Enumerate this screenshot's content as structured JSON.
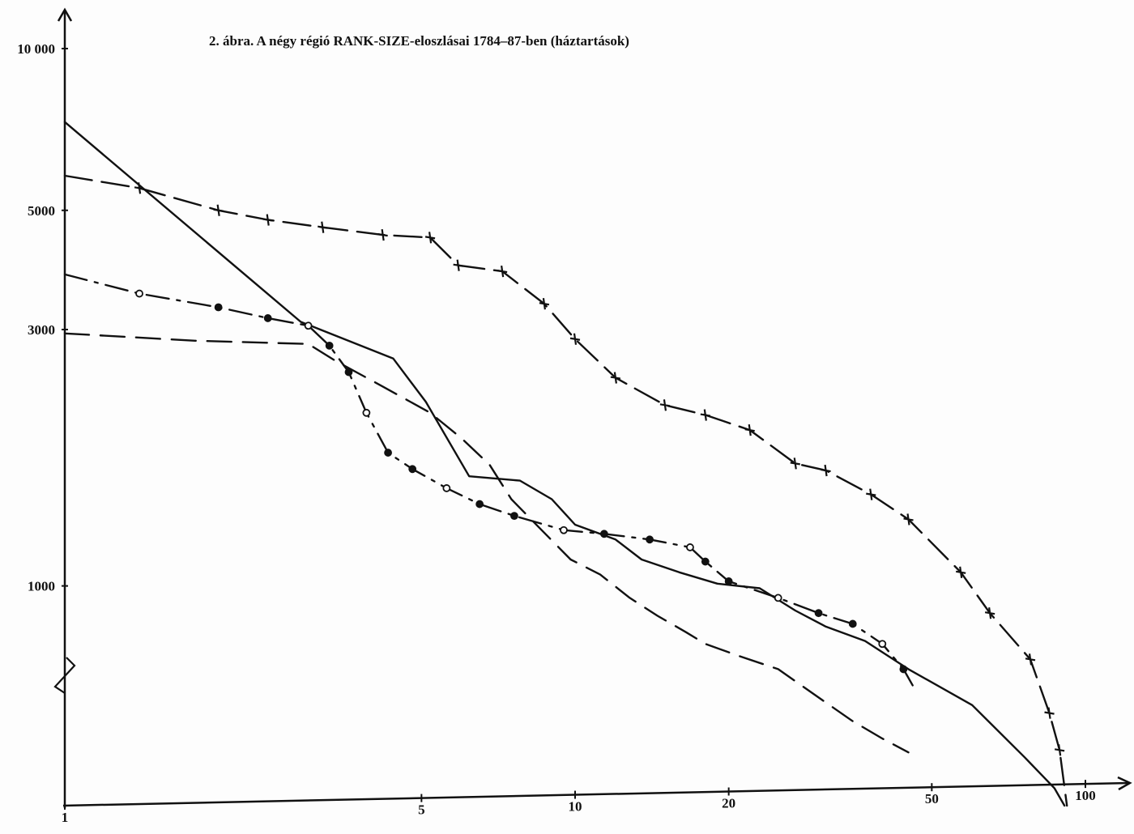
{
  "chart_data": {
    "type": "line",
    "title": "2. ábra. A négy régió RANK-SIZE-eloszlásai 1784–87-ben (háztartások)",
    "xlabel": "",
    "ylabel": "",
    "x_scale": "log",
    "y_scale": "log",
    "xlim": [
      1,
      100
    ],
    "ylim": [
      390,
      10000
    ],
    "x_ticks": [
      {
        "value": 1,
        "label": "1"
      },
      {
        "value": 5,
        "label": "5"
      },
      {
        "value": 10,
        "label": "10"
      },
      {
        "value": 20,
        "label": "20"
      },
      {
        "value": 50,
        "label": "50"
      },
      {
        "value": 100,
        "label": "100"
      }
    ],
    "y_ticks": [
      {
        "value": 10000,
        "label": "10 000"
      },
      {
        "value": 5000,
        "label": "5000"
      },
      {
        "value": 3000,
        "label": "3000"
      },
      {
        "value": 1000,
        "label": "1000"
      }
    ],
    "grid": false,
    "legend": "none",
    "series": [
      {
        "style": "solid",
        "points": [
          [
            1,
            7300
          ],
          [
            2.9,
            3100
          ],
          [
            4.4,
            2650
          ],
          [
            5.1,
            2200
          ],
          [
            6.2,
            1600
          ],
          [
            7.8,
            1570
          ],
          [
            9.0,
            1450
          ],
          [
            10.0,
            1300
          ],
          [
            12,
            1220
          ],
          [
            13.5,
            1120
          ],
          [
            16,
            1060
          ],
          [
            19,
            1010
          ],
          [
            23,
            990
          ],
          [
            27,
            900
          ],
          [
            31,
            840
          ],
          [
            37,
            790
          ],
          [
            45,
            700
          ],
          [
            60,
            600
          ],
          [
            76,
            480
          ],
          [
            87,
            420
          ],
          [
            91,
            390
          ]
        ]
      },
      {
        "style": "dash-cross",
        "points": [
          [
            1,
            5800
          ],
          [
            1.4,
            5500
          ],
          [
            2.0,
            5000
          ],
          [
            2.5,
            4800
          ],
          [
            3.2,
            4650
          ],
          [
            4.2,
            4500
          ],
          [
            5.2,
            4450
          ],
          [
            5.9,
            3950
          ],
          [
            7.2,
            3850
          ],
          [
            8.7,
            3350
          ],
          [
            10.0,
            2880
          ],
          [
            12,
            2440
          ],
          [
            15,
            2170
          ],
          [
            18,
            2080
          ],
          [
            22,
            1950
          ],
          [
            27,
            1690
          ],
          [
            31,
            1640
          ],
          [
            38,
            1480
          ],
          [
            45,
            1330
          ],
          [
            57,
            1060
          ],
          [
            65,
            890
          ],
          [
            78,
            730
          ],
          [
            85,
            580
          ],
          [
            89,
            495
          ],
          [
            92,
            390
          ]
        ]
      },
      {
        "style": "dash-circle",
        "points": [
          [
            1,
            3800
          ],
          [
            1.4,
            3500
          ],
          [
            2.0,
            3300
          ],
          [
            2.5,
            3150
          ],
          [
            3.0,
            3050
          ],
          [
            3.3,
            2800
          ],
          [
            3.6,
            2500
          ],
          [
            3.9,
            2100
          ],
          [
            4.3,
            1770
          ],
          [
            4.8,
            1650
          ],
          [
            5.6,
            1520
          ],
          [
            6.5,
            1420
          ],
          [
            7.6,
            1350
          ],
          [
            9.5,
            1270
          ],
          [
            11.4,
            1250
          ],
          [
            14,
            1220
          ],
          [
            16.8,
            1180
          ],
          [
            18,
            1110
          ],
          [
            20,
            1020
          ],
          [
            25,
            950
          ],
          [
            30,
            890
          ],
          [
            35,
            850
          ],
          [
            40,
            780
          ],
          [
            44,
            700
          ],
          [
            46,
            650
          ]
        ]
      },
      {
        "style": "dashed",
        "points": [
          [
            1,
            2950
          ],
          [
            1.8,
            2860
          ],
          [
            3.0,
            2820
          ],
          [
            3.4,
            2620
          ],
          [
            4.2,
            2350
          ],
          [
            5.2,
            2100
          ],
          [
            6.0,
            1880
          ],
          [
            6.8,
            1680
          ],
          [
            7.5,
            1450
          ],
          [
            8.6,
            1270
          ],
          [
            9.8,
            1120
          ],
          [
            11.2,
            1050
          ],
          [
            12.8,
            950
          ],
          [
            14.5,
            880
          ],
          [
            16.5,
            820
          ],
          [
            18,
            780
          ],
          [
            21,
            740
          ],
          [
            25,
            700
          ],
          [
            30,
            620
          ],
          [
            35,
            560
          ],
          [
            40,
            520
          ],
          [
            45,
            490
          ]
        ]
      }
    ]
  }
}
